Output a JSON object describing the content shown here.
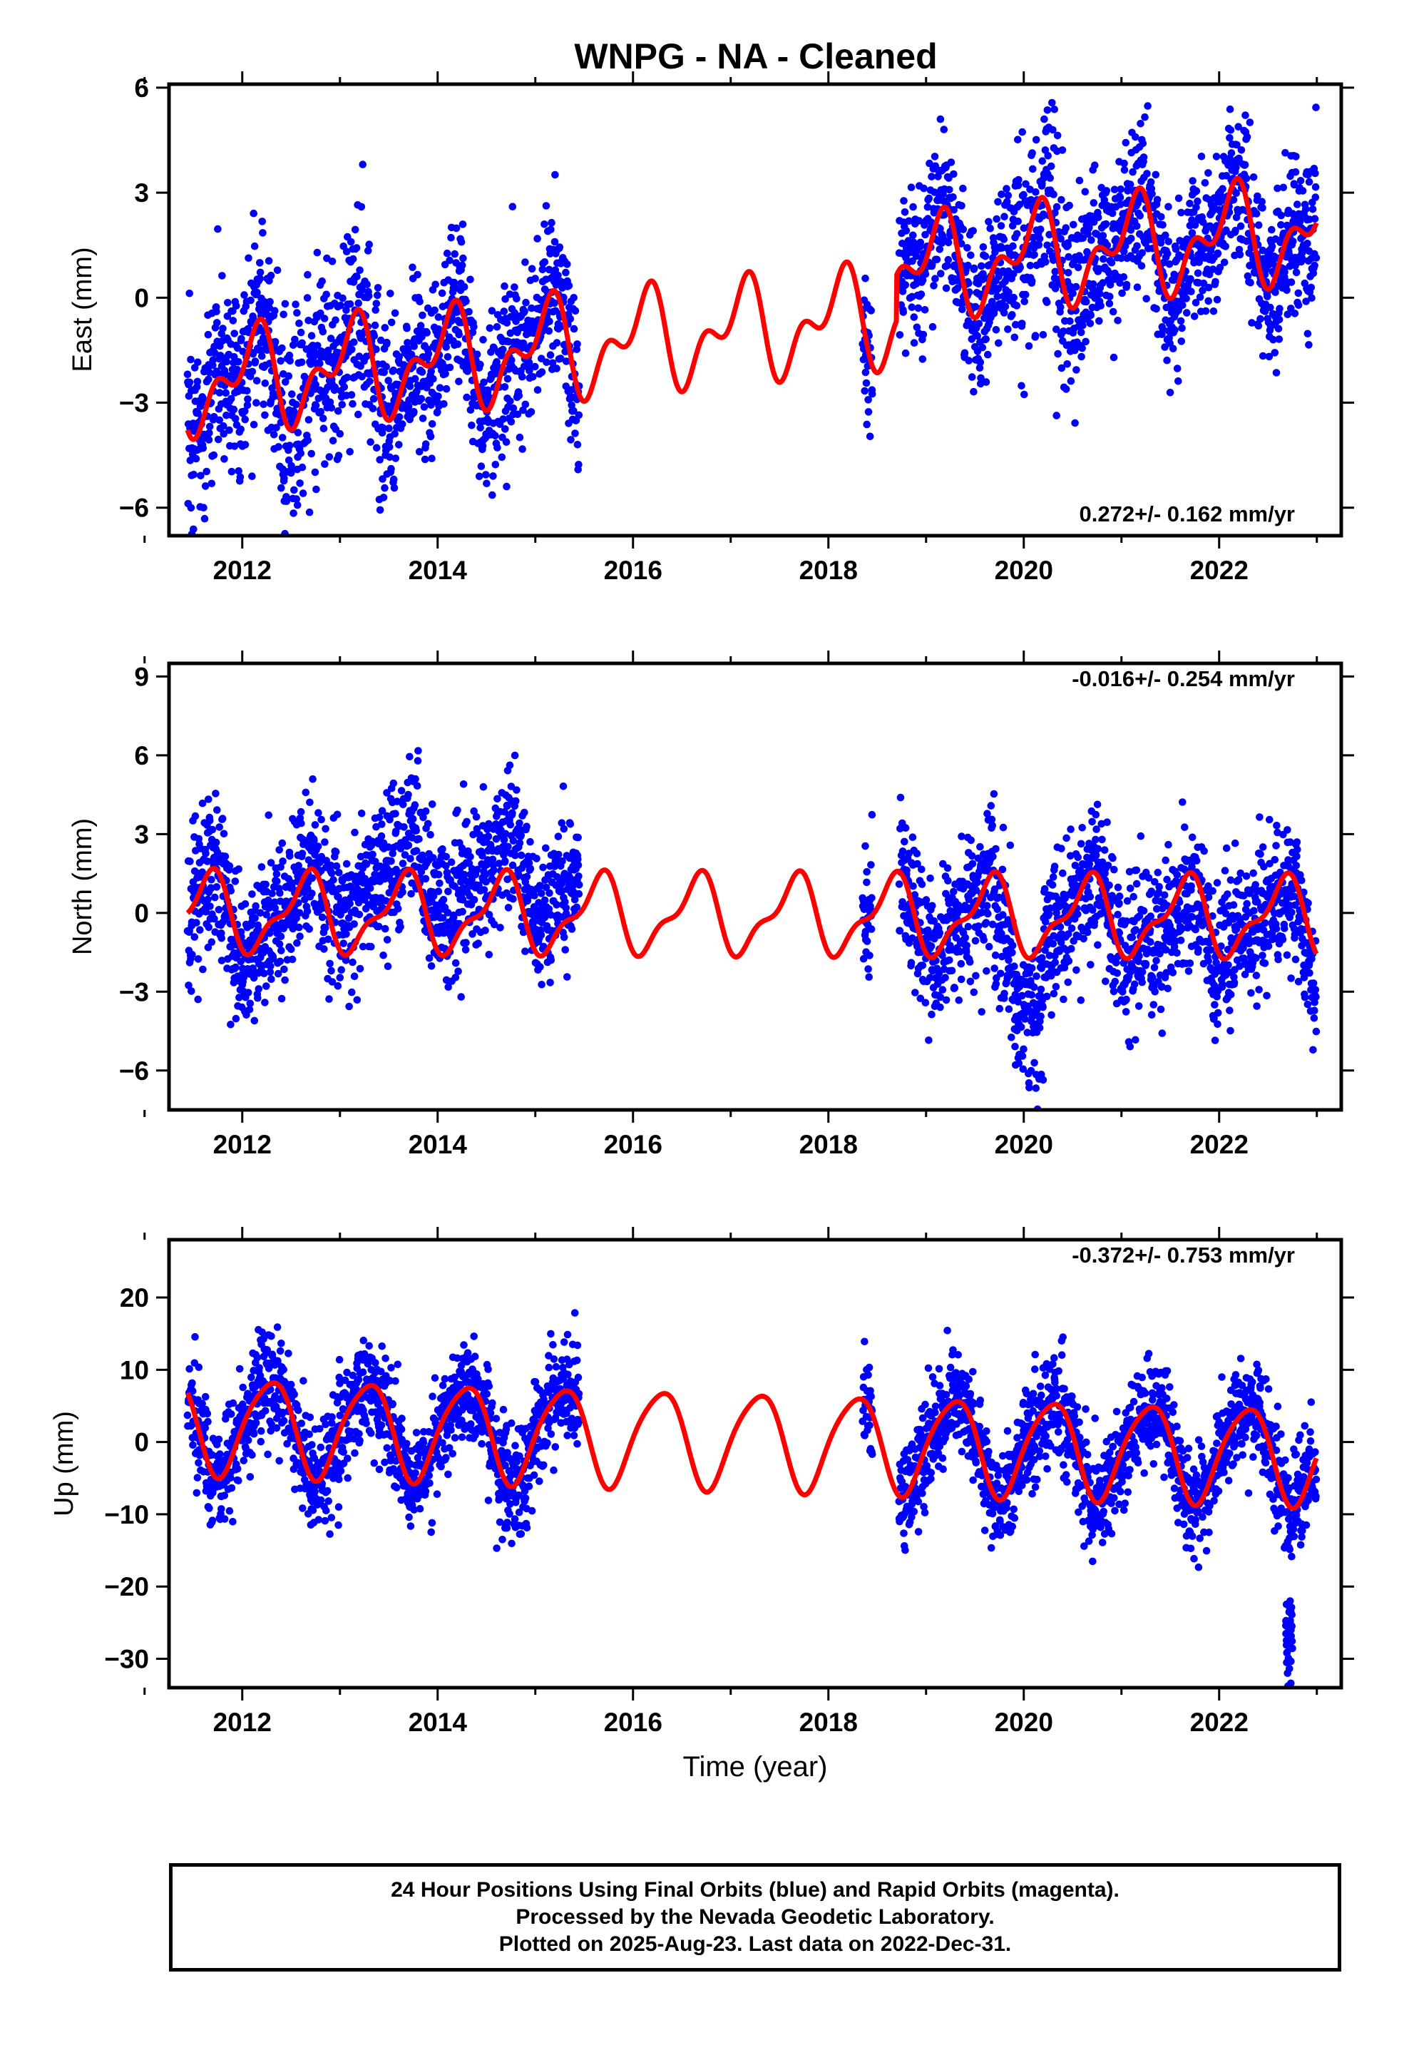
{
  "colors": {
    "final_orbits": "#0000ff",
    "model": "#ff0000",
    "frame": "#000000"
  },
  "chart_data": {
    "type": "scatter",
    "title": "WNPG  - NA - Cleaned",
    "xlabel": "Time (year)",
    "xlim": [
      2011.25,
      2023.25
    ],
    "x_ticks": [
      2012,
      2014,
      2016,
      2018,
      2020,
      2022
    ],
    "x_tick_labels": [
      "2012",
      "2014",
      "2016",
      "2018",
      "2020",
      "2022"
    ],
    "data_gaps": [
      [
        2015.45,
        2018.35
      ],
      [
        2018.45,
        2018.72
      ]
    ],
    "data_end": 2022.996,
    "panels": [
      {
        "id": "east",
        "ylabel": "East (mm)",
        "ylim": [
          -6.8,
          6.1
        ],
        "y_ticks": [
          -6,
          -3,
          0,
          3,
          6
        ],
        "y_tick_labels": [
          "−6",
          "−3",
          "0",
          "3",
          "6"
        ],
        "rate_text": "0.272+/- 0.162 mm/yr",
        "rate_position": "bottom-right",
        "model": {
          "offset": -0.9,
          "trend": 0.272,
          "ref_year": 2017.2,
          "annual_cos": 0.9,
          "annual_sin": 0.65,
          "semi_cos": -0.7,
          "semi_sin": 0.3,
          "steps": [
            {
              "year": 2018.7,
              "size": 1.3
            }
          ]
        },
        "scatter": {
          "noise": 1.1,
          "extra_noise": [
            {
              "from": 2011.4,
              "to": 2013.6,
              "sd": 0.35
            },
            {
              "from": 2019.9,
              "to": 2020.6,
              "sd": 0.5
            }
          ]
        }
      },
      {
        "id": "north",
        "ylabel": "North (mm)",
        "ylim": [
          -7.5,
          9.5
        ],
        "y_ticks": [
          -6,
          -3,
          0,
          3,
          6,
          9
        ],
        "y_tick_labels": [
          "−6",
          "−3",
          "0",
          "3",
          "6",
          "9"
        ],
        "rate_text": "-0.016+/- 0.254 mm/yr",
        "rate_position": "top-right",
        "model": {
          "offset": -0.1,
          "trend": -0.016,
          "ref_year": 2017.2,
          "annual_cos": -0.85,
          "annual_sin": -1.05,
          "semi_cos": -0.55,
          "semi_sin": 0.0,
          "steps": []
        },
        "scatter": {
          "noise": 1.35,
          "segment_bias": [
            {
              "from": 2012.9,
              "to": 2015.45,
              "bias": 1.8
            },
            {
              "from": 2019.7,
              "to": 2020.2,
              "bias": -2.6
            },
            {
              "from": 2021.3,
              "to": 2022.0,
              "bias": -1.2
            },
            {
              "from": 2022.6,
              "to": 2023.0,
              "bias": -1.3
            }
          ]
        }
      },
      {
        "id": "up",
        "ylabel": "Up (mm)",
        "ylim": [
          -34,
          28
        ],
        "y_ticks": [
          -30,
          -20,
          -10,
          0,
          10,
          20
        ],
        "y_tick_labels": [
          "−30",
          "−20",
          "−10",
          "0",
          "10",
          "20"
        ],
        "rate_text": "-0.372+/- 0.753 mm/yr",
        "rate_position": "top-right",
        "model": {
          "offset": 0.3,
          "trend": -0.372,
          "ref_year": 2017.2,
          "annual_cos": -1.1,
          "annual_sin": 6.5,
          "semi_cos": 0.9,
          "semi_sin": -0.4,
          "steps": []
        },
        "scatter": {
          "noise": 3.6,
          "outliers": [
            {
              "from": 2022.68,
              "to": 2022.75,
              "center": -26,
              "sd": 3.8,
              "count": 40
            }
          ]
        }
      }
    ]
  },
  "footer": {
    "line1": "24 Hour Positions Using Final Orbits (blue) and Rapid Orbits (magenta).",
    "line2": "Processed by the Nevada Geodetic Laboratory.",
    "line3": "Plotted on 2025-Aug-23. Last data on 2022-Dec-31."
  }
}
